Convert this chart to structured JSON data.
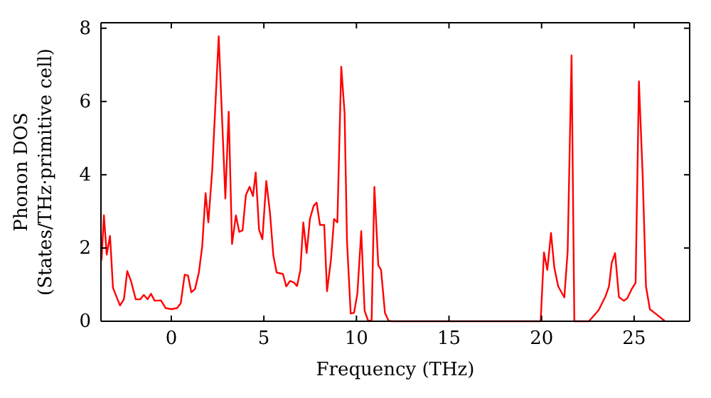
{
  "chart_data": {
    "type": "line",
    "xlabel": "Frequency (THz)",
    "ylabel": "Phonon DOS\n(States/THz·primitive cell)",
    "xlim": [
      -3.8,
      28
    ],
    "ylim": [
      0,
      8.15
    ],
    "xticks": [
      0,
      5,
      10,
      15,
      20,
      25
    ],
    "yticks": [
      0,
      2,
      4,
      6,
      8
    ],
    "grid": false,
    "marker": "none",
    "line_style": "solid",
    "series": [
      {
        "color": "#ff0000",
        "x": [
          -3.77,
          -3.64,
          -3.49,
          -3.31,
          -3.15,
          -2.77,
          -2.56,
          -2.38,
          -2.18,
          -1.92,
          -1.67,
          -1.49,
          -1.28,
          -1.1,
          -0.9,
          -0.56,
          -0.31,
          0,
          0.31,
          0.51,
          0.72,
          0.9,
          1.08,
          1.28,
          1.49,
          1.67,
          1.85,
          2.0,
          2.21,
          2.56,
          2.92,
          3.1,
          3.28,
          3.49,
          3.67,
          3.85,
          4.03,
          4.23,
          4.41,
          4.56,
          4.74,
          4.92,
          5.13,
          5.33,
          5.51,
          5.69,
          6.03,
          6.21,
          6.41,
          6.62,
          6.79,
          6.97,
          7.13,
          7.31,
          7.49,
          7.69,
          7.85,
          8.03,
          8.26,
          8.41,
          8.62,
          8.79,
          8.97,
          9.18,
          9.36,
          9.49,
          9.69,
          9.87,
          10.05,
          10.26,
          10.44,
          10.64,
          10.82,
          10.97,
          11.18,
          11.33,
          11.54,
          11.74,
          11.92,
          19.95,
          20.13,
          20.31,
          20.51,
          20.69,
          20.9,
          21.23,
          21.41,
          21.62,
          21.77,
          22.56,
          23.08,
          23.46,
          23.64,
          23.79,
          23.97,
          24.18,
          24.44,
          24.62,
          24.87,
          25.08,
          25.26,
          25.46,
          25.64,
          25.85,
          26.15,
          26.67
        ],
        "values": [
          1.66,
          2.89,
          1.82,
          2.33,
          0.91,
          0.43,
          0.6,
          1.37,
          1.1,
          0.6,
          0.6,
          0.72,
          0.6,
          0.75,
          0.56,
          0.57,
          0.36,
          0.33,
          0.36,
          0.49,
          1.27,
          1.25,
          0.79,
          0.88,
          1.33,
          2.05,
          3.5,
          2.7,
          4.12,
          7.78,
          3.35,
          5.72,
          2.11,
          2.89,
          2.44,
          2.48,
          3.45,
          3.67,
          3.42,
          4.06,
          2.5,
          2.24,
          3.83,
          2.96,
          1.8,
          1.33,
          1.29,
          0.95,
          1.1,
          1.06,
          0.96,
          1.39,
          2.7,
          1.86,
          2.8,
          3.15,
          3.24,
          2.63,
          2.63,
          0.82,
          1.66,
          2.79,
          2.7,
          6.95,
          5.68,
          2.18,
          0.21,
          0.23,
          0.75,
          2.46,
          0.29,
          0,
          0.04,
          3.67,
          1.53,
          1.4,
          0.23,
          0.01,
          0,
          0,
          1.88,
          1.4,
          2.41,
          1.46,
          0.95,
          0.65,
          1.92,
          7.26,
          0,
          0,
          0.3,
          0.69,
          0.95,
          1.6,
          1.86,
          0.66,
          0.56,
          0.62,
          0.88,
          1.05,
          6.55,
          4.0,
          0.95,
          0.33,
          0.21,
          0
        ]
      }
    ]
  }
}
